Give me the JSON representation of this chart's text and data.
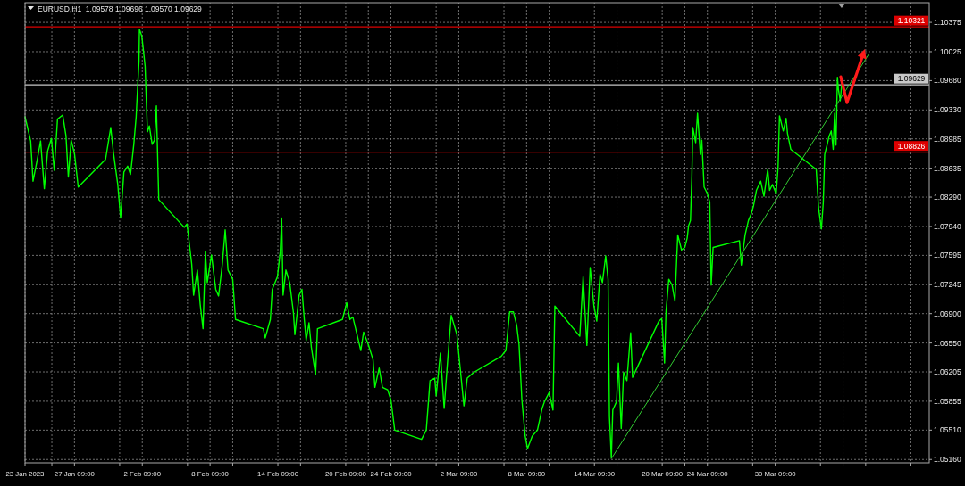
{
  "chart_data": {
    "type": "line",
    "title": "EURUSD,H1  1.09578 1.09696 1.09570 1.09629",
    "series": [
      {
        "color": "#00ff00",
        "x": [
          "2023-01-23T00:00",
          "2023-01-23T12:00",
          "2023-01-23T17:00",
          "2023-01-24T02:00",
          "2023-01-24T09:00",
          "2023-01-24T17:00",
          "2023-01-25T00:00",
          "2023-01-25T08:00",
          "2023-01-25T14:00",
          "2023-01-25T21:00",
          "2023-01-26T08:00",
          "2023-01-26T15:00",
          "2023-01-26T20:00",
          "2023-01-27T02:00",
          "2023-01-27T09:00",
          "2023-01-27T17:00",
          "2023-01-30T03:00",
          "2023-01-30T14:00",
          "2023-01-30T20:00",
          "2023-01-31T05:00",
          "2023-01-31T11:00",
          "2023-01-31T18:00",
          "2023-02-01T02:00",
          "2023-02-01T08:00",
          "2023-02-01T15:00",
          "2023-02-01T20:00",
          "2023-02-02T02:00",
          "2023-02-02T03:00",
          "2023-02-02T08:00",
          "2023-02-02T12:00",
          "2023-02-02T15:00",
          "2023-02-02T20:00",
          "2023-02-03T00:00",
          "2023-02-03T06:00",
          "2023-02-03T11:00",
          "2023-02-03T15:00",
          "2023-02-03T17:00",
          "2023-02-03T20:00",
          "2023-02-06T02:00",
          "2023-02-06T08:00",
          "2023-02-06T12:00",
          "2023-02-06T18:00",
          "2023-02-06T22:00",
          "2023-02-07T06:00",
          "2023-02-07T12:00",
          "2023-02-07T18:00",
          "2023-02-07T23:00",
          "2023-02-08T03:00",
          "2023-02-08T12:00",
          "2023-02-08T21:00",
          "2023-02-09T03:00",
          "2023-02-09T11:00",
          "2023-02-09T17:00",
          "2023-02-09T23:00",
          "2023-02-10T09:00",
          "2023-02-10T15:00",
          "2023-02-13T02:00",
          "2023-02-13T06:00",
          "2023-02-13T17:00",
          "2023-02-13T21:00",
          "2023-02-14T08:00",
          "2023-02-14T14:00",
          "2023-02-14T17:00",
          "2023-02-14T20:00",
          "2023-02-15T02:00",
          "2023-02-15T10:00",
          "2023-02-15T18:00",
          "2023-02-15T21:00",
          "2023-02-16T06:00",
          "2023-02-16T12:00",
          "2023-02-16T17:00",
          "2023-02-16T21:00",
          "2023-02-17T03:00",
          "2023-02-17T08:00",
          "2023-02-17T17:00",
          "2023-02-17T21:00",
          "2023-02-20T02:00",
          "2023-02-20T11:00",
          "2023-02-20T18:00",
          "2023-02-21T00:00",
          "2023-02-21T09:00",
          "2023-02-21T17:00",
          "2023-02-21T23:00",
          "2023-02-22T09:00",
          "2023-02-22T19:00",
          "2023-02-22T23:00",
          "2023-02-23T08:00",
          "2023-02-23T15:00",
          "2023-02-24T02:00",
          "2023-02-24T09:00",
          "2023-02-24T17:00",
          "2023-02-27T02:00",
          "2023-02-27T12:00",
          "2023-02-27T20:00",
          "2023-02-28T06:00",
          "2023-02-28T09:00",
          "2023-02-28T18:00",
          "2023-03-01T02:00",
          "2023-03-01T10:00",
          "2023-03-01T17:00",
          "2023-03-02T05:00",
          "2023-03-02T12:00",
          "2023-03-02T20:00",
          "2023-03-03T03:00",
          "2023-03-03T17:00",
          "2023-03-06T03:00",
          "2023-03-06T13:00",
          "2023-03-06T21:00",
          "2023-03-07T05:00",
          "2023-03-07T12:00",
          "2023-03-07T17:00",
          "2023-03-07T23:00",
          "2023-03-08T06:00",
          "2023-03-08T11:00",
          "2023-03-08T21:00",
          "2023-03-09T08:00",
          "2023-03-09T18:00",
          "2023-03-09T23:00",
          "2023-03-10T09:00",
          "2023-03-10T17:00",
          "2023-03-10T21:00",
          "2023-03-13T02:00",
          "2023-03-13T09:00",
          "2023-03-13T17:00",
          "2023-03-14T00:00",
          "2023-03-14T08:00",
          "2023-03-14T14:00",
          "2023-03-14T21:00",
          "2023-03-15T02:00",
          "2023-03-15T09:00",
          "2023-03-15T14:00",
          "2023-03-15T17:00",
          "2023-03-15T21:00",
          "2023-03-16T00:00",
          "2023-03-16T08:00",
          "2023-03-16T12:00",
          "2023-03-16T18:00",
          "2023-03-16T23:00",
          "2023-03-17T06:00",
          "2023-03-17T14:00",
          "2023-03-17T18:00",
          "2023-03-20T02:00",
          "2023-03-20T08:00",
          "2023-03-20T14:00",
          "2023-03-20T17:00",
          "2023-03-20T23:00",
          "2023-03-21T06:00",
          "2023-03-21T12:00",
          "2023-03-21T18:00",
          "2023-03-22T02:00",
          "2023-03-22T09:00",
          "2023-03-22T14:00",
          "2023-03-22T17:00",
          "2023-03-22T21:00",
          "2023-03-23T00:00",
          "2023-03-23T02:00",
          "2023-03-23T08:00",
          "2023-03-23T12:00",
          "2023-03-23T18:00",
          "2023-03-23T21:00",
          "2023-03-24T02:00",
          "2023-03-24T09:00",
          "2023-03-24T14:00",
          "2023-03-24T17:00",
          "2023-03-24T21:00",
          "2023-03-27T05:00",
          "2023-03-27T09:00",
          "2023-03-27T17:00",
          "2023-03-28T00:00",
          "2023-03-28T06:00",
          "2023-03-28T11:00",
          "2023-03-28T17:00",
          "2023-03-29T02:00",
          "2023-03-29T09:00",
          "2023-03-29T17:00",
          "2023-03-29T21:00",
          "2023-03-30T03:00",
          "2023-03-30T11:00",
          "2023-03-30T15:00",
          "2023-03-30T18:00",
          "2023-03-31T02:00",
          "2023-03-31T08:00",
          "2023-03-31T11:00",
          "2023-03-31T18:00",
          "2023-04-03T00:00",
          "2023-04-03T05:00",
          "2023-04-03T11:00",
          "2023-04-03T15:00",
          "2023-04-03T18:00",
          "2023-04-03T23:00",
          "2023-04-04T03:00",
          "2023-04-04T08:00",
          "2023-04-04T12:00",
          "2023-04-04T15:00",
          "2023-04-04T18:00",
          "2023-04-04T21:00",
          "2023-04-04T23:00",
          "2023-04-05T03:00",
          "2023-04-05T06:00"
        ],
        "values": [
          1.0925,
          1.0896,
          1.0848,
          1.0874,
          1.0896,
          1.0839,
          1.0884,
          1.0899,
          1.0861,
          1.0922,
          1.0927,
          1.0902,
          1.0853,
          1.0897,
          1.0881,
          1.0841,
          1.0874,
          1.0912,
          1.0881,
          1.0844,
          1.0804,
          1.0859,
          1.0866,
          1.0856,
          1.0892,
          1.0925,
          1.0991,
          1.1029,
          1.1021,
          1.1001,
          1.0985,
          1.0907,
          1.0914,
          1.0892,
          1.0897,
          1.0938,
          1.0892,
          1.0826,
          1.0793,
          1.0797,
          1.0778,
          1.0749,
          1.0712,
          1.0742,
          1.0701,
          1.0672,
          1.0764,
          1.0727,
          1.076,
          1.0719,
          1.0711,
          1.0749,
          1.079,
          1.0742,
          1.0731,
          1.0683,
          1.0672,
          1.0661,
          1.0683,
          1.0719,
          1.0734,
          1.0764,
          1.0804,
          1.0712,
          1.0742,
          1.0727,
          1.0691,
          1.0665,
          1.0712,
          1.0719,
          1.0683,
          1.0658,
          1.0679,
          1.065,
          1.0617,
          1.0672,
          1.0683,
          1.0703,
          1.0683,
          1.0686,
          1.0665,
          1.0646,
          1.0668,
          1.0653,
          1.0635,
          1.0602,
          1.0625,
          1.0602,
          1.0599,
          1.0587,
          1.0551,
          1.054,
          1.0551,
          1.061,
          1.0613,
          1.0592,
          1.0643,
          1.0577,
          1.0639,
          1.0688,
          1.0665,
          1.0625,
          1.058,
          1.0613,
          1.062,
          1.0639,
          1.0646,
          1.0692,
          1.0692,
          1.0676,
          1.0653,
          1.0587,
          1.0544,
          1.0529,
          1.0544,
          1.0551,
          1.0577,
          1.0585,
          1.0596,
          1.0575,
          1.0699,
          1.0663,
          1.0734,
          1.0652,
          1.0745,
          1.0699,
          1.0681,
          1.0737,
          1.0727,
          1.0759,
          1.0731,
          1.0567,
          1.0518,
          1.0575,
          1.0585,
          1.0631,
          1.0553,
          1.062,
          1.061,
          1.0667,
          1.0614,
          1.0681,
          1.0684,
          1.0631,
          1.0692,
          1.0731,
          1.0724,
          1.0705,
          1.0784,
          1.0766,
          1.0769,
          1.078,
          1.0795,
          1.0801,
          1.0854,
          1.0912,
          1.0894,
          1.0929,
          1.088,
          1.0897,
          1.0841,
          1.0833,
          1.0823,
          1.0724,
          1.0769,
          1.0777,
          1.0748,
          1.0784,
          1.0801,
          1.0809,
          1.0819,
          1.0837,
          1.0848,
          1.083,
          1.0862,
          1.0837,
          1.0844,
          1.0833,
          1.0865,
          1.0926,
          1.0908,
          1.0923,
          1.0905,
          1.0886,
          1.0862,
          1.0816,
          1.0791,
          1.0823,
          1.088,
          1.0891,
          1.0901,
          1.0908,
          1.0886,
          1.0929,
          1.0891,
          1.0972,
          1.0958,
          1.0944,
          1.0963
        ]
      },
      {
        "type": "line",
        "color": "#32cd32",
        "x": [
          "2023-03-15T21:00",
          "2023-04-07T15:00"
        ],
        "values": [
          1.0517,
          1.0999
        ]
      }
    ],
    "xlim": [
      "2023-01-23",
      "2023-04-13"
    ],
    "xticks": [
      {
        "value": "2023-01-23",
        "label": "23 Jan 2023"
      },
      {
        "value": "2023-01-25T09:00",
        "label": null
      },
      {
        "value": "2023-01-27T09:00",
        "label": "27 Jan 09:00"
      },
      {
        "value": "2023-01-31T09:00",
        "label": null
      },
      {
        "value": "2023-02-02T09:00",
        "label": "2 Feb 09:00"
      },
      {
        "value": "2023-02-06T09:00",
        "label": null
      },
      {
        "value": "2023-02-08T09:00",
        "label": "8 Feb 09:00"
      },
      {
        "value": "2023-02-10T09:00",
        "label": null
      },
      {
        "value": "2023-02-14T09:00",
        "label": "14 Feb 09:00"
      },
      {
        "value": "2023-02-16T09:00",
        "label": null
      },
      {
        "value": "2023-02-20T09:00",
        "label": "20 Feb 09:00"
      },
      {
        "value": "2023-02-22T09:00",
        "label": null
      },
      {
        "value": "2023-02-24T09:00",
        "label": "24 Feb 09:00"
      },
      {
        "value": "2023-02-28T09:00",
        "label": null
      },
      {
        "value": "2023-03-02T09:00",
        "label": "2 Mar 09:00"
      },
      {
        "value": "2023-03-06T09:00",
        "label": null
      },
      {
        "value": "2023-03-08T09:00",
        "label": "8 Mar 09:00"
      },
      {
        "value": "2023-03-10T09:00",
        "label": null
      },
      {
        "value": "2023-03-14T09:00",
        "label": "14 Mar 09:00"
      },
      {
        "value": "2023-03-16T09:00",
        "label": null
      },
      {
        "value": "2023-03-20T09:00",
        "label": "20 Mar 09:00"
      },
      {
        "value": "2023-03-22T09:00",
        "label": null
      },
      {
        "value": "2023-03-24T09:00",
        "label": "24 Mar 09:00"
      },
      {
        "value": "2023-03-28T09:00",
        "label": null
      },
      {
        "value": "2023-03-30T09:00",
        "label": "30 Mar 09:00"
      },
      {
        "value": "2023-04-03T09:00",
        "label": null
      },
      {
        "value": "2023-04-05T09:00",
        "label": null
      },
      {
        "value": "2023-04-07T09:00",
        "label": null
      },
      {
        "value": "2023-04-11T09:00",
        "label": null
      }
    ],
    "ylim": [
      1.0512,
      1.1061
    ],
    "yticks": [
      {
        "value": 1.0516,
        "label": "1.05160"
      },
      {
        "value": 1.0551,
        "label": "1.05510"
      },
      1.05855,
      1.06205,
      {
        "value": 1.0655,
        "label": "1.06550"
      },
      {
        "value": 1.069,
        "label": "1.06900"
      },
      1.07245,
      1.07595,
      {
        "value": 1.0794,
        "label": "1.07940"
      },
      {
        "value": 1.0829,
        "label": "1.08290"
      },
      1.08635,
      1.08985,
      {
        "value": 1.0933,
        "label": "1.09330"
      },
      {
        "value": 1.0968,
        "label": "1.09680"
      },
      1.10025,
      1.10375
    ],
    "grid": true,
    "ref_lines": [
      {
        "axis": "y",
        "value": 1.10321,
        "label": "1.10321",
        "color": "#dd0000"
      },
      {
        "axis": "y",
        "value": 1.08826,
        "label": "1.08826",
        "color": "#dd0000"
      },
      {
        "axis": "y",
        "value": 1.09629,
        "label": "1.09629",
        "color": "#c8c8c8"
      }
    ]
  }
}
